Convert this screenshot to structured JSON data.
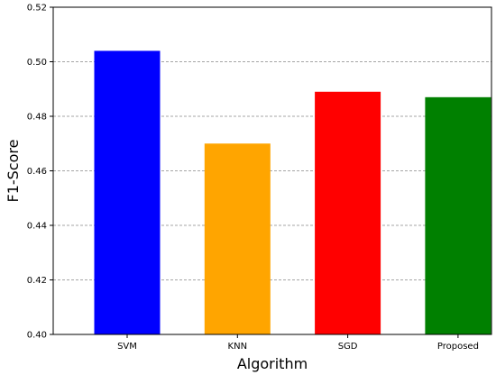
{
  "chart_data": {
    "type": "bar",
    "categories": [
      "SVM",
      "KNN",
      "SGD",
      "Proposed"
    ],
    "values": [
      0.504,
      0.47,
      0.489,
      0.487
    ],
    "colors": [
      "#0000ff",
      "#ffa500",
      "#ff0000",
      "#008000"
    ],
    "title": "",
    "xlabel": "Algorithm",
    "ylabel": "F1-Score",
    "ylim": [
      0.4,
      0.52
    ],
    "yticks": [
      "0.40",
      "0.42",
      "0.44",
      "0.46",
      "0.48",
      "0.50",
      "0.52"
    ],
    "grid": "horizontal dashed",
    "legend": "none"
  }
}
